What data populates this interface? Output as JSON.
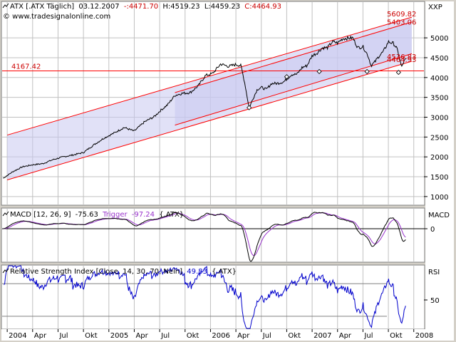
{
  "chart_data": [
    {
      "type": "line",
      "panel": "price",
      "header": {
        "instrument": "ATX [.ATX  Täglich]",
        "date": "03.12.2007",
        "open": "-:4471.70",
        "high": "H:4519.23",
        "low": "L:4459.23",
        "close": "C:4464.93",
        "watermark": "© www.tradesignalonline.com"
      },
      "axis_unit": "XXP",
      "ylim": [
        800,
        5900
      ],
      "yticks": [
        1000,
        1500,
        2000,
        2500,
        3000,
        3500,
        4000,
        4500,
        5000
      ],
      "ytick_labels": [
        "1000",
        "1500",
        "2000",
        "2500",
        "3000",
        "3500",
        "4000",
        "4500",
        "5000"
      ],
      "price_labels": [
        {
          "text": "5609.82",
          "value": 5609.82,
          "color": "#cc0000"
        },
        {
          "text": "5403.06",
          "value": 5403.06,
          "color": "#cc0000"
        },
        {
          "text": "4536.83",
          "value": 4536.83,
          "color": "#cc0000"
        },
        {
          "text": "4464.93",
          "value": 4464.93,
          "color": "#cc0000"
        }
      ],
      "horizontal_line": {
        "text": "4167.42",
        "value": 4167.42,
        "color": "#ff0000"
      },
      "x_range": [
        2003.95,
        2008.1
      ],
      "series": [
        {
          "values_x": [
            2003.96,
            2004.05,
            2004.15,
            2004.25,
            2004.35,
            2004.45,
            2004.55,
            2004.65,
            2004.75,
            2004.85,
            2004.95,
            2005.05,
            2005.15,
            2005.25,
            2005.35,
            2005.45,
            2005.5,
            2005.58,
            2005.65,
            2005.72,
            2005.8,
            2005.88,
            2005.95,
            2006.02,
            2006.1,
            2006.18,
            2006.25,
            2006.3,
            2006.34,
            2006.38,
            2006.42,
            2006.46,
            2006.5,
            2006.55,
            2006.6,
            2006.65,
            2006.72,
            2006.8,
            2006.85,
            2006.9,
            2006.95,
            2007.0,
            2007.05,
            2007.1,
            2007.15,
            2007.2,
            2007.25,
            2007.3,
            2007.35,
            2007.4,
            2007.45,
            2007.5,
            2007.55,
            2007.58,
            2007.62,
            2007.66,
            2007.7,
            2007.75,
            2007.8,
            2007.83,
            2007.86,
            2007.88,
            2007.9,
            2007.92
          ],
          "values_y": [
            1460,
            1620,
            1750,
            1800,
            1830,
            1930,
            2000,
            2050,
            2110,
            2300,
            2470,
            2600,
            2740,
            2650,
            2880,
            3020,
            3150,
            3320,
            3550,
            3600,
            3620,
            3790,
            4050,
            4100,
            4340,
            4280,
            4330,
            4300,
            3820,
            3230,
            3480,
            3700,
            3750,
            3700,
            3850,
            3850,
            3890,
            4080,
            4080,
            4250,
            4300,
            4550,
            4620,
            4750,
            4750,
            4900,
            4870,
            4980,
            4990,
            5000,
            4750,
            4780,
            4550,
            4300,
            4400,
            4550,
            4650,
            4900,
            4860,
            4750,
            4500,
            4250,
            4390,
            4460
          ],
          "color": "#000000"
        }
      ],
      "channels": [
        {
          "name": "",
          "x": [
            2004.0,
            2007.98
          ],
          "upper": [
            2550,
            5520
          ],
          "lower": [
            1420,
            4410
          ]
        },
        {
          "name": "",
          "x": [
            2005.65,
            2007.98
          ],
          "upper": [
            3620,
            5400
          ],
          "lower": [
            2800,
            4600
          ]
        }
      ],
      "markers": [
        {
          "x": 2006.38,
          "y": 3240
        },
        {
          "x": 2006.75,
          "y": 4020
        },
        {
          "x": 2007.07,
          "y": 4150
        },
        {
          "x": 2007.54,
          "y": 4150
        },
        {
          "x": 2007.85,
          "y": 4130
        }
      ]
    },
    {
      "type": "line",
      "panel": "macd",
      "title": "MACD [12, 26, 9] -75.63 Trigger -97.24 {.ATX}",
      "title_macd_prefix": "MACD [12, 26, 9]",
      "title_macd_value": "-75.63",
      "title_trigger_label": "Trigger",
      "title_trigger_value": "-97.24",
      "title_suffix": "{.ATX}",
      "axis_unit": "MACD",
      "ylim": [
        -230,
        140
      ],
      "yticks": [
        0
      ],
      "ytick_labels": [
        "0"
      ],
      "series": [
        {
          "name": "MACD",
          "color": "#000000"
        },
        {
          "name": "Trigger",
          "color": "#9933cc"
        }
      ],
      "zero_line": 0
    },
    {
      "type": "line",
      "panel": "rsi",
      "title": "Relative Strength Index [Close, 14, 30, 70, Nein] 49.83 {.ATX}",
      "title_prefix": "Relative Strength Index [Close, 14, 30, 70, Nein]",
      "title_value": "49.83",
      "title_suffix": "{.ATX}",
      "axis_unit": "RSI",
      "ylim": [
        15,
        92
      ],
      "yticks": [
        50
      ],
      "ytick_labels": [
        "50"
      ],
      "levels": [
        30,
        70
      ],
      "series": [
        {
          "name": "RSI",
          "color": "#0000cc"
        }
      ]
    }
  ],
  "x_axis": {
    "labels": [
      "2004",
      "Apr",
      "Jul",
      "Okt",
      "2005",
      "Apr",
      "Jul",
      "Okt",
      "2006",
      "Apr",
      "Jul",
      "Okt",
      "2007",
      "Apr",
      "Jul",
      "Okt",
      "2008"
    ],
    "positions": [
      2004.0,
      2004.25,
      2004.5,
      2004.75,
      2005.0,
      2005.25,
      2005.5,
      2005.75,
      2006.0,
      2006.25,
      2006.5,
      2006.75,
      2007.0,
      2007.25,
      2007.5,
      2007.75,
      2008.0
    ]
  },
  "colors": {
    "frame_bg": "#d4d0c8",
    "plot_bg": "#ffffff",
    "grid": "#c0c0c0",
    "channel_fill": "#c8c8f0",
    "channel_line": "#ff0000",
    "price_line": "#000000",
    "macd_line": "#000000",
    "trigger_line": "#9933cc",
    "rsi_line": "#0000cc"
  }
}
